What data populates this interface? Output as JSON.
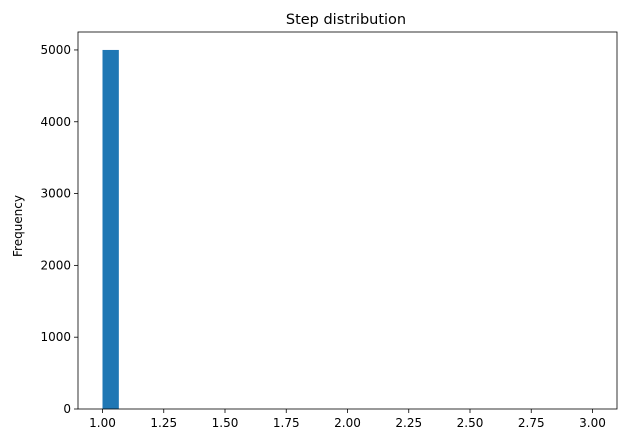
{
  "chart_data": {
    "type": "bar",
    "title": "Step distribution",
    "xlabel": "",
    "ylabel": "Frequency",
    "bin_edges": [
      1.0,
      1.0667,
      1.1333,
      1.2,
      1.2667,
      1.3333,
      1.4,
      1.4667,
      1.5333,
      1.6,
      1.6667,
      1.7333,
      1.8,
      1.8667,
      1.9333,
      2.0,
      2.0667,
      2.1333,
      2.2,
      2.2667,
      2.3333,
      2.4,
      2.4667,
      2.5333,
      2.6,
      2.6667,
      2.7333,
      2.8,
      2.8667,
      2.9333,
      3.0
    ],
    "values": [
      5000,
      0,
      0,
      0,
      0,
      0,
      0,
      0,
      0,
      0,
      0,
      0,
      0,
      0,
      0,
      0,
      0,
      0,
      0,
      0,
      0,
      0,
      0,
      0,
      0,
      0,
      0,
      0,
      0,
      0
    ],
    "xlim": [
      0.9,
      3.1
    ],
    "ylim": [
      0,
      5250
    ],
    "xticks": [
      "1.00",
      "1.25",
      "1.50",
      "1.75",
      "2.00",
      "2.25",
      "2.50",
      "2.75",
      "3.00"
    ],
    "xtick_values": [
      1.0,
      1.25,
      1.5,
      1.75,
      2.0,
      2.25,
      2.5,
      2.75,
      3.0
    ],
    "yticks": [
      "0",
      "1000",
      "2000",
      "3000",
      "4000",
      "5000"
    ],
    "ytick_values": [
      0,
      1000,
      2000,
      3000,
      4000,
      5000
    ],
    "grid": false,
    "bar_color": "#1f77b4"
  }
}
